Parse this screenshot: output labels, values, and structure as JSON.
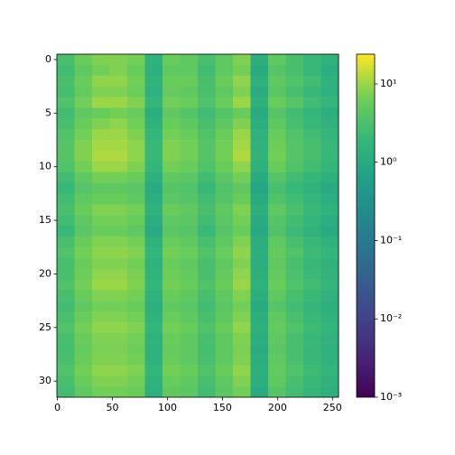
{
  "chart_data": {
    "type": "heatmap",
    "colormap": "viridis",
    "color_scale": "log",
    "x_edges": [
      -0.5,
      15.5,
      31.5,
      47.5,
      63.5,
      79.5,
      95.5,
      111.5,
      127.5,
      143.5,
      159.5,
      175.5,
      191.5,
      207.5,
      223.5,
      239.5,
      255.5
    ],
    "y": [
      0,
      1,
      2,
      3,
      4,
      5,
      6,
      7,
      8,
      9,
      10,
      11,
      12,
      13,
      14,
      15,
      16,
      17,
      18,
      19,
      20,
      21,
      22,
      23,
      24,
      25,
      26,
      27,
      28,
      29,
      30,
      31
    ],
    "xlim": [
      -0.5,
      255.5
    ],
    "ylim": [
      31.5,
      -0.5
    ],
    "xticks": [
      0,
      50,
      100,
      150,
      200,
      250
    ],
    "yticks": [
      0,
      5,
      10,
      15,
      20,
      25,
      30
    ],
    "clim": [
      0.001,
      24
    ],
    "cticks": [
      {
        "value": 0.001,
        "label": "10⁻³"
      },
      {
        "value": 0.01,
        "label": "10⁻²"
      },
      {
        "value": 0.1,
        "label": "10⁻¹"
      },
      {
        "value": 1,
        "label": "10⁰"
      },
      {
        "value": 10,
        "label": "10¹"
      }
    ],
    "z": [
      [
        3,
        6,
        8,
        8,
        7,
        1.5,
        6,
        5,
        3,
        5,
        8,
        1.2,
        5,
        3,
        2,
        1.5
      ],
      [
        2.5,
        5,
        7,
        8,
        6,
        1.3,
        5,
        5,
        2.5,
        5,
        7,
        1.0,
        4,
        3,
        2,
        1.2
      ],
      [
        3,
        6,
        9,
        9,
        7,
        1.6,
        6,
        6,
        3,
        6,
        9,
        1.3,
        5,
        3.5,
        2.5,
        1.5
      ],
      [
        2.8,
        5.5,
        8,
        8,
        6.5,
        1.4,
        5.5,
        5,
        3,
        5,
        8,
        1.1,
        4.5,
        3,
        2,
        1.4
      ],
      [
        3.5,
        7,
        10,
        10,
        8,
        1.8,
        7,
        6,
        3.5,
        6,
        10,
        1.4,
        6,
        4,
        2.5,
        1.8
      ],
      [
        2.5,
        5,
        6,
        7,
        6,
        1.2,
        5,
        4,
        2.5,
        4,
        6,
        1.0,
        4,
        2.5,
        1.8,
        1.2
      ],
      [
        3,
        6,
        8,
        9,
        7,
        1.5,
        6,
        5,
        3,
        5,
        8,
        1.2,
        5,
        3,
        2,
        1.5
      ],
      [
        3.5,
        7,
        10,
        10,
        8,
        1.7,
        7,
        6,
        3.5,
        6,
        10,
        1.4,
        6,
        3.5,
        2.5,
        1.7
      ],
      [
        4,
        8,
        11,
        11,
        9,
        2,
        8,
        7,
        4,
        7,
        11,
        1.5,
        6.5,
        4,
        3,
        2
      ],
      [
        4,
        8,
        12,
        12,
        9,
        2,
        8,
        7,
        4,
        7,
        12,
        1.6,
        7,
        4,
        3,
        2
      ],
      [
        3.5,
        7,
        10,
        10,
        8,
        1.8,
        7,
        6,
        3.5,
        6,
        9,
        1.4,
        6,
        3.5,
        2.5,
        1.8
      ],
      [
        2.5,
        5,
        7,
        7,
        6,
        1.3,
        5,
        4.5,
        2.5,
        4.5,
        7,
        1.0,
        4,
        2.5,
        1.8,
        1.3
      ],
      [
        2,
        4,
        5,
        5,
        4.5,
        1,
        4,
        3.5,
        2,
        3.5,
        5,
        0.8,
        3,
        2,
        1.5,
        1
      ],
      [
        2.5,
        5,
        6,
        6,
        5,
        1.2,
        4.5,
        4,
        2.5,
        4,
        6,
        1.0,
        3.5,
        2.5,
        1.7,
        1.2
      ],
      [
        3,
        6,
        8,
        8,
        7,
        1.5,
        6,
        5,
        3,
        5,
        8,
        1.2,
        5,
        3,
        2,
        1.5
      ],
      [
        2.5,
        5,
        7,
        7,
        6,
        1.2,
        5,
        4.5,
        2.5,
        4.5,
        7,
        1.0,
        4,
        2.5,
        1.8,
        1.2
      ],
      [
        2,
        4.5,
        6,
        6,
        5,
        1.0,
        4.5,
        4,
        2,
        4,
        6,
        0.9,
        3.5,
        2.2,
        1.5,
        1.0
      ],
      [
        3,
        6,
        8,
        8,
        7,
        1.5,
        6,
        5,
        3,
        5,
        8,
        1.2,
        5,
        3,
        2,
        1.5
      ],
      [
        3.5,
        7,
        9,
        9,
        8,
        1.7,
        7,
        6,
        3.5,
        6,
        9,
        1.3,
        5.5,
        3.5,
        2.3,
        1.7
      ],
      [
        3,
        6,
        8,
        8,
        7,
        1.5,
        6,
        5,
        3,
        5,
        8,
        1.2,
        5,
        3,
        2,
        1.5
      ],
      [
        3,
        6.5,
        9,
        9,
        7.5,
        1.6,
        6.5,
        5.5,
        3,
        5.5,
        9,
        1.3,
        5.5,
        3.2,
        2.2,
        1.6
      ],
      [
        3.5,
        7,
        10,
        10,
        8,
        1.8,
        7,
        6,
        3.5,
        6,
        10,
        1.4,
        6,
        3.5,
        2.5,
        1.8
      ],
      [
        3,
        6,
        8,
        8,
        7,
        1.5,
        6,
        5,
        3,
        5,
        8,
        1.2,
        5,
        3,
        2,
        1.5
      ],
      [
        2.5,
        5,
        7,
        7,
        6,
        1.3,
        5,
        4.5,
        2.5,
        4.5,
        7,
        1.0,
        4,
        2.5,
        1.8,
        1.3
      ],
      [
        3,
        6,
        8,
        8,
        7,
        1.5,
        6,
        5,
        3,
        5,
        8,
        1.2,
        5,
        3,
        2,
        1.5
      ],
      [
        3.5,
        7,
        9,
        9,
        8,
        1.7,
        7,
        6,
        3.5,
        6,
        9,
        1.3,
        5.5,
        3.5,
        2.3,
        1.7
      ],
      [
        3,
        6,
        8,
        8,
        7,
        1.5,
        6,
        5,
        3,
        5,
        8,
        1.2,
        5,
        3,
        2,
        1.5
      ],
      [
        2.8,
        5.5,
        7.5,
        7.5,
        6.5,
        1.4,
        5.5,
        5,
        2.8,
        5,
        7.5,
        1.1,
        4.5,
        3,
        2,
        1.4
      ],
      [
        3,
        6,
        8,
        8,
        7,
        1.5,
        6,
        5,
        3,
        5,
        8,
        1.2,
        5,
        3,
        2,
        1.5
      ],
      [
        3.5,
        7,
        9,
        9,
        8,
        1.7,
        7,
        6,
        3.5,
        6,
        9,
        1.3,
        5.5,
        3.5,
        2.3,
        1.7
      ],
      [
        3,
        6,
        8,
        8,
        7,
        1.5,
        6,
        5,
        3,
        5,
        8,
        1.2,
        5,
        3,
        2,
        1.5
      ],
      [
        2.5,
        5,
        7,
        7,
        6,
        1.3,
        5,
        4.5,
        2.5,
        4.5,
        7,
        1.0,
        4,
        2.5,
        1.8,
        1.3
      ]
    ]
  }
}
